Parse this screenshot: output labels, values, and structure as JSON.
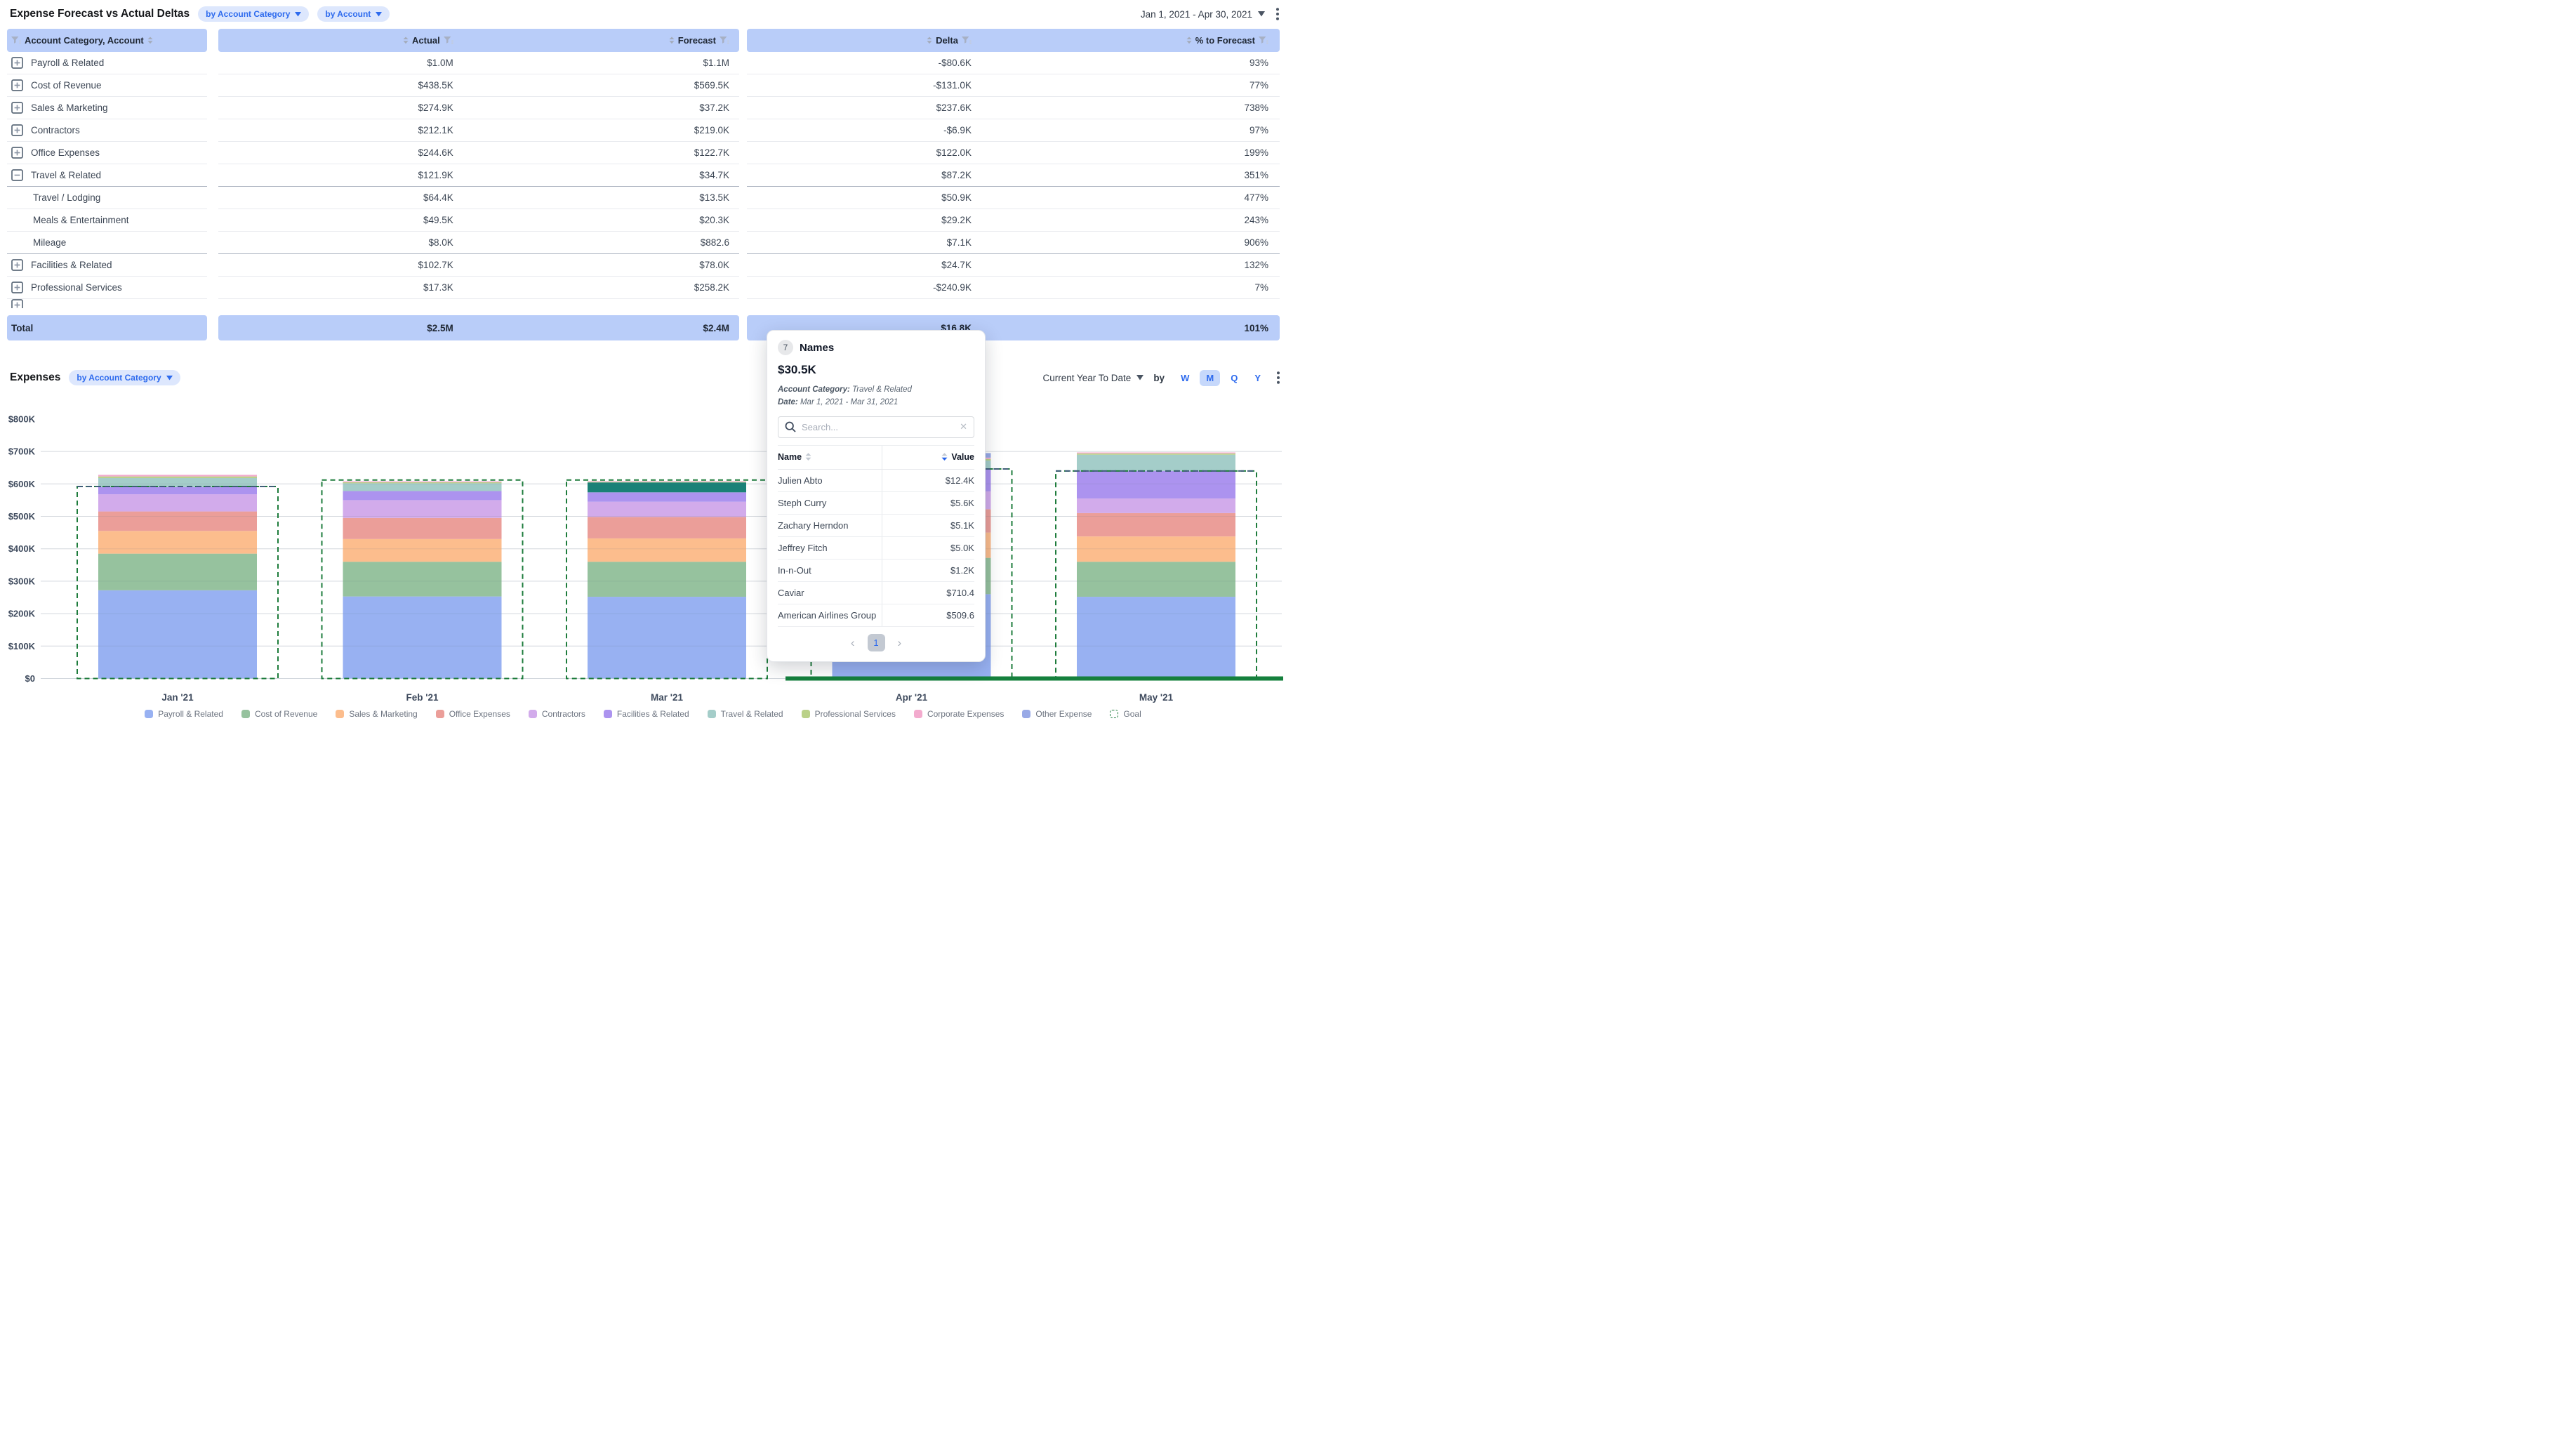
{
  "header": {
    "title": "Expense Forecast vs Actual Deltas",
    "pills": [
      "by Account Category",
      "by Account"
    ],
    "date_range": "Jan 1, 2021 - Apr 30, 2021"
  },
  "table": {
    "columns": {
      "account": "Account Category, Account",
      "actual": "Actual",
      "forecast": "Forecast",
      "delta": "Delta",
      "pct": "% to Forecast"
    },
    "rows": [
      {
        "account": "Payroll & Related",
        "actual": "$1.0M",
        "forecast": "$1.1M",
        "delta": "-$80.6K",
        "pct": "93%",
        "icon": "plus",
        "child": false,
        "sep": false
      },
      {
        "account": "Cost of Revenue",
        "actual": "$438.5K",
        "forecast": "$569.5K",
        "delta": "-$131.0K",
        "pct": "77%",
        "icon": "plus",
        "child": false,
        "sep": false
      },
      {
        "account": "Sales & Marketing",
        "actual": "$274.9K",
        "forecast": "$37.2K",
        "delta": "$237.6K",
        "pct": "738%",
        "icon": "plus",
        "child": false,
        "sep": false
      },
      {
        "account": "Contractors",
        "actual": "$212.1K",
        "forecast": "$219.0K",
        "delta": "-$6.9K",
        "pct": "97%",
        "icon": "plus",
        "child": false,
        "sep": false
      },
      {
        "account": "Office Expenses",
        "actual": "$244.6K",
        "forecast": "$122.7K",
        "delta": "$122.0K",
        "pct": "199%",
        "icon": "plus",
        "child": false,
        "sep": false
      },
      {
        "account": "Travel & Related",
        "actual": "$121.9K",
        "forecast": "$34.7K",
        "delta": "$87.2K",
        "pct": "351%",
        "icon": "minus",
        "child": false,
        "sep": true
      },
      {
        "account": "Travel / Lodging",
        "actual": "$64.4K",
        "forecast": "$13.5K",
        "delta": "$50.9K",
        "pct": "477%",
        "icon": "none",
        "child": true,
        "sep": false
      },
      {
        "account": "Meals & Entertainment",
        "actual": "$49.5K",
        "forecast": "$20.3K",
        "delta": "$29.2K",
        "pct": "243%",
        "icon": "none",
        "child": true,
        "sep": false
      },
      {
        "account": "Mileage",
        "actual": "$8.0K",
        "forecast": "$882.6",
        "delta": "$7.1K",
        "pct": "906%",
        "icon": "none",
        "child": true,
        "sep": true
      },
      {
        "account": "Facilities & Related",
        "actual": "$102.7K",
        "forecast": "$78.0K",
        "delta": "$24.7K",
        "pct": "132%",
        "icon": "plus",
        "child": false,
        "sep": false
      },
      {
        "account": "Professional Services",
        "actual": "$17.3K",
        "forecast": "$258.2K",
        "delta": "-$240.9K",
        "pct": "7%",
        "icon": "plus",
        "child": false,
        "sep": false
      }
    ],
    "total": {
      "label": "Total",
      "actual": "$2.5M",
      "forecast": "$2.4M",
      "delta": "$16.8K",
      "pct": "101%"
    }
  },
  "chart": {
    "title": "Expenses",
    "pill": "by Account Category",
    "controls": {
      "range": "Current Year To Date",
      "by_label": "by",
      "intervals": [
        "W",
        "M",
        "Q",
        "Y"
      ],
      "selected_interval": "M"
    }
  },
  "chart_data": {
    "type": "bar",
    "stacked": true,
    "units": "$K",
    "title": "Expenses by Account Category",
    "categories": [
      "Jan '21",
      "Feb '21",
      "Mar '21",
      "Apr '21",
      "May '21"
    ],
    "series": [
      {
        "name": "Payroll & Related",
        "color": "#98b1f2",
        "values": [
          272,
          253,
          252,
          260,
          252
        ]
      },
      {
        "name": "Cost of Revenue",
        "color": "#96c29e",
        "values": [
          113,
          107,
          108,
          112,
          108
        ]
      },
      {
        "name": "Sales & Marketing",
        "color": "#fcbd8d",
        "values": [
          70,
          70,
          72,
          78,
          78
        ]
      },
      {
        "name": "Office Expenses",
        "color": "#eb9e99",
        "values": [
          60,
          65,
          66,
          72,
          72
        ]
      },
      {
        "name": "Contractors",
        "color": "#d2abeb",
        "values": [
          53,
          55,
          47,
          55,
          45
        ]
      },
      {
        "name": "Facilities & Related",
        "color": "#ac93ef",
        "values": [
          22,
          28,
          29,
          70,
          85
        ]
      },
      {
        "name": "Travel & Related",
        "color": "#a4cdc9",
        "values": [
          28,
          24,
          30.5,
          25,
          50
        ]
      },
      {
        "name": "Professional Services",
        "color": "#bad188",
        "values": [
          5,
          3,
          2,
          5,
          4
        ]
      },
      {
        "name": "Corporate Expenses",
        "color": "#f3abce",
        "values": [
          5,
          3,
          2,
          4,
          3
        ]
      },
      {
        "name": "Other Expense",
        "color": "#98a9e6",
        "values": [
          0,
          0,
          0,
          14,
          0
        ]
      }
    ],
    "goal": {
      "name": "Goal",
      "color": "#1e7c3c",
      "values": [
        592,
        612,
        612,
        646,
        640
      ]
    },
    "highlight": {
      "series": "Travel & Related",
      "category": "Mar '21",
      "color": "#1a8177"
    },
    "ylabel_ticks": [
      "$0",
      "$100K",
      "$200K",
      "$300K",
      "$400K",
      "$500K",
      "$600K",
      "$700K",
      "$800K"
    ],
    "ylim": [
      0,
      800
    ],
    "legend_position": "bottom",
    "grid": true
  },
  "popup": {
    "count_badge": "7",
    "title": "Names",
    "amount": "$30.5K",
    "meta": [
      {
        "label": "Account Category:",
        "value": "Travel & Related"
      },
      {
        "label": "Date:",
        "value": "Mar 1, 2021 - Mar 31, 2021"
      }
    ],
    "search_placeholder": "Search...",
    "columns": {
      "name": "Name",
      "value": "Value"
    },
    "rows": [
      {
        "name": "Julien Abto",
        "value": "$12.4K"
      },
      {
        "name": "Steph Curry",
        "value": "$5.6K"
      },
      {
        "name": "Zachary Herndon",
        "value": "$5.1K"
      },
      {
        "name": "Jeffrey Fitch",
        "value": "$5.0K"
      },
      {
        "name": "In-n-Out",
        "value": "$1.2K"
      },
      {
        "name": "Caviar",
        "value": "$710.4"
      },
      {
        "name": "American Airlines Group",
        "value": "$509.6"
      }
    ],
    "page": "1"
  }
}
